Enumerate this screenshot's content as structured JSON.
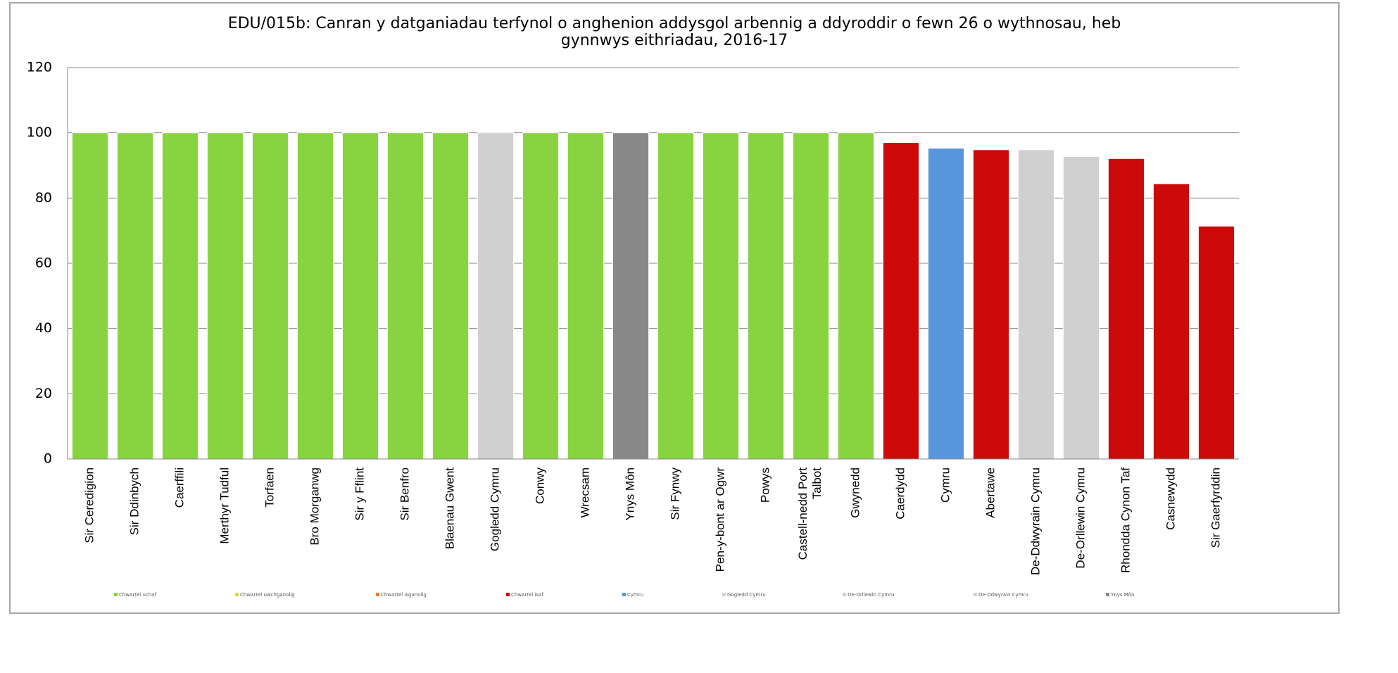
{
  "chart_data": {
    "type": "bar",
    "title": [
      "EDU/015b: Canran y datganiadau terfynol o anghenion addysgol arbennig a ddyroddir o fewn 26 o wythnosau, heb",
      "gynnwys eithriadau, 2016-17"
    ],
    "categories": [
      "Sir Ceredigion",
      "Sir Ddinbych",
      "Caerffili",
      "Merthyr Tudful",
      "Torfaen",
      "Bro Morganwg",
      "Sir y Fflint",
      "Sir Benfro",
      "Blaenau Gwent",
      "Gogledd Cymru",
      "Conwy",
      "Wrecsam",
      "Ynys Môn",
      "Sir Fynwy",
      "Pen-y-bont ar Ogwr",
      "Powys",
      "Castell-nedd Port Talbot",
      "Gwynedd",
      "Caerdydd",
      "Cymru",
      "Abertawe",
      "De-Ddwyrain Cymru",
      "De-Orllewin Cymru",
      "Rhondda Cynon Taf",
      "Casnewydd",
      "Sir Gaerfyrddin"
    ],
    "values": [
      100,
      100,
      100,
      100,
      100,
      100,
      100,
      100,
      100,
      100,
      100,
      100,
      100,
      100,
      100,
      100,
      100,
      100,
      97,
      95.3,
      94.8,
      94.8,
      92.7,
      92.1,
      84.4,
      71.4
    ],
    "colors": [
      "#88d440",
      "#88d440",
      "#88d440",
      "#88d440",
      "#88d440",
      "#88d440",
      "#88d440",
      "#88d440",
      "#88d440",
      "#d0d0d0",
      "#88d440",
      "#88d440",
      "#888888",
      "#88d440",
      "#88d440",
      "#88d440",
      "#88d440",
      "#88d440",
      "#cc0a0a",
      "#5a96dc",
      "#cc0a0a",
      "#d0d0d0",
      "#d0d0d0",
      "#cc0a0a",
      "#cc0a0a",
      "#cc0a0a"
    ],
    "legend": [
      {
        "name": "Chwartel uchaf",
        "color": "#88d440"
      },
      {
        "name": "Chwartel uwchganolig",
        "color": "#d8e040"
      },
      {
        "name": "Chwartel isganolig",
        "color": "#f08030"
      },
      {
        "name": "Chwartel isaf",
        "color": "#cc0a0a"
      },
      {
        "name": "Cymru",
        "color": "#5a96dc"
      },
      {
        "name": "Gogledd Cymru",
        "color": "#d0d0d0"
      },
      {
        "name": "De-Orllewin Cymru",
        "color": "#d0d0d0"
      },
      {
        "name": "De-Ddwyrain Cymru",
        "color": "#d0d0d0"
      },
      {
        "name": "Ynys Môn",
        "color": "#888888"
      }
    ],
    "ylim": [
      0,
      120
    ],
    "yticks": [
      0,
      20,
      40,
      60,
      80,
      100,
      120
    ],
    "grid": true
  }
}
